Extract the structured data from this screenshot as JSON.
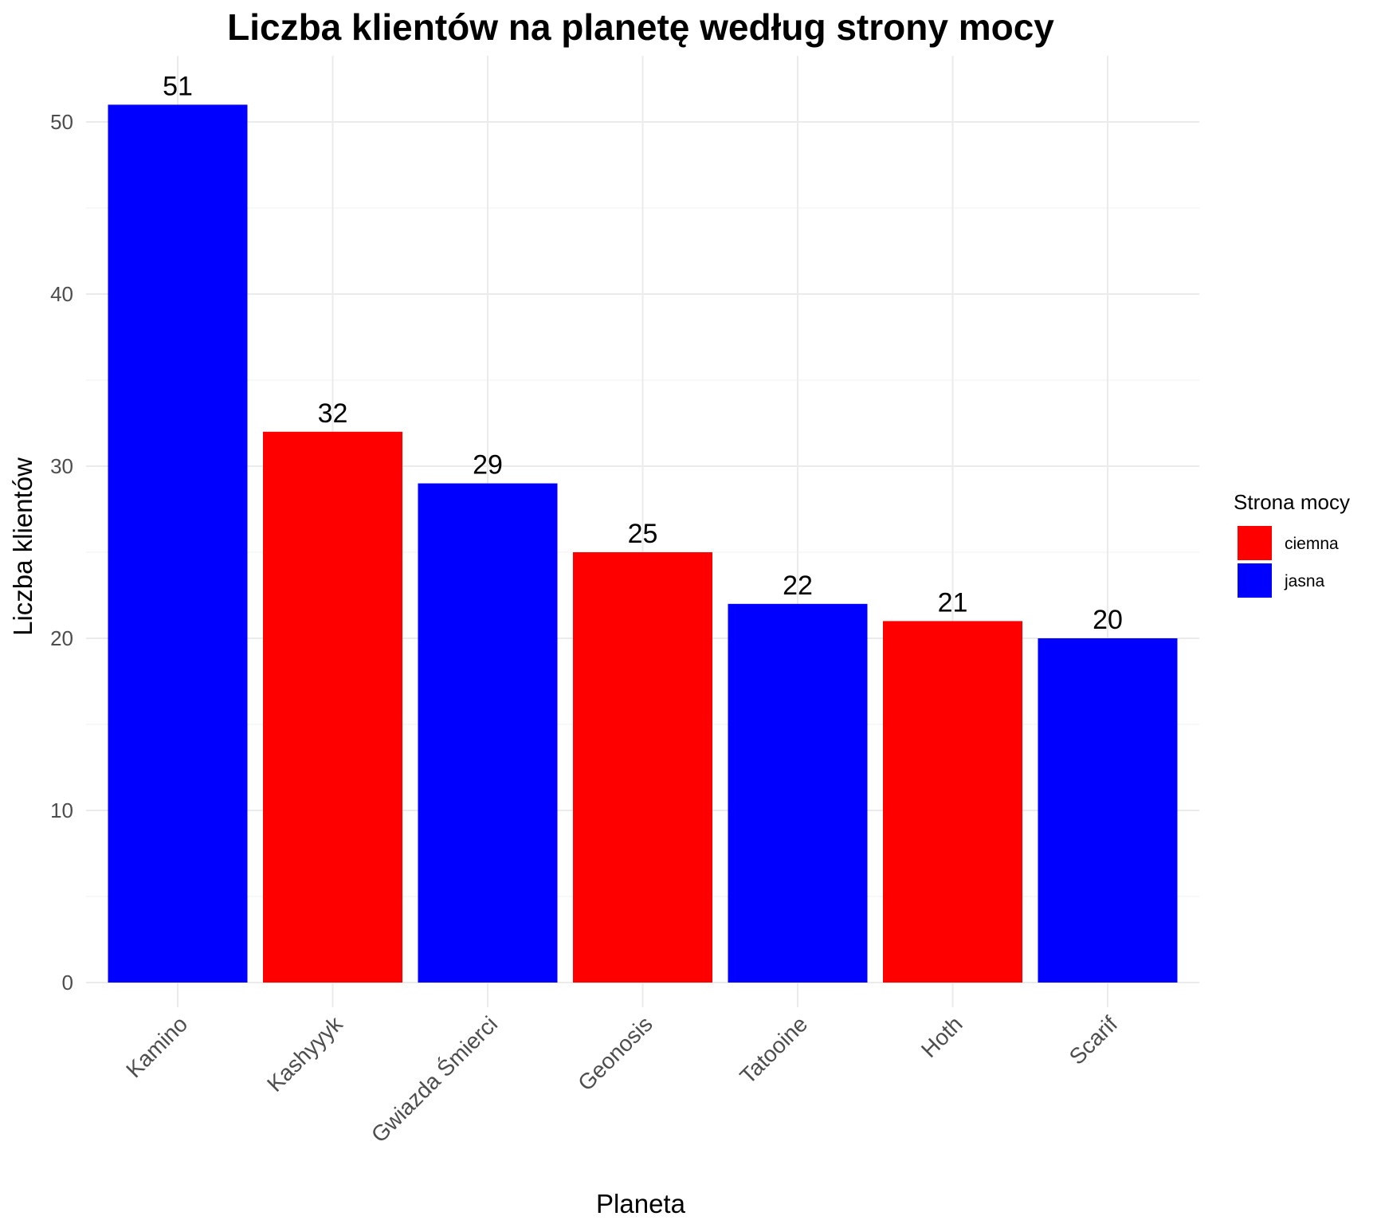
{
  "chart_data": {
    "type": "bar",
    "title": "Liczba klientów na planetę według strony mocy",
    "xlabel": "Planeta",
    "ylabel": "Liczba klientów",
    "ylim": [
      0,
      53
    ],
    "yticks": [
      0,
      10,
      20,
      30,
      40,
      50
    ],
    "grid": true,
    "legend": {
      "title": "Strona mocy",
      "position": "right",
      "entries": [
        {
          "label": "ciemna",
          "color": "#FF0000"
        },
        {
          "label": "jasna",
          "color": "#0000FF"
        }
      ]
    },
    "categories": [
      "Kamino",
      "Kashyyyk",
      "Gwiazda Śmierci",
      "Geonosis",
      "Tatooine",
      "Hoth",
      "Scarif"
    ],
    "values": [
      51,
      32,
      29,
      25,
      22,
      21,
      20
    ],
    "groups": [
      "jasna",
      "ciemna",
      "jasna",
      "ciemna",
      "jasna",
      "ciemna",
      "jasna"
    ],
    "data_labels": [
      "51",
      "32",
      "29",
      "25",
      "22",
      "21",
      "20"
    ]
  }
}
